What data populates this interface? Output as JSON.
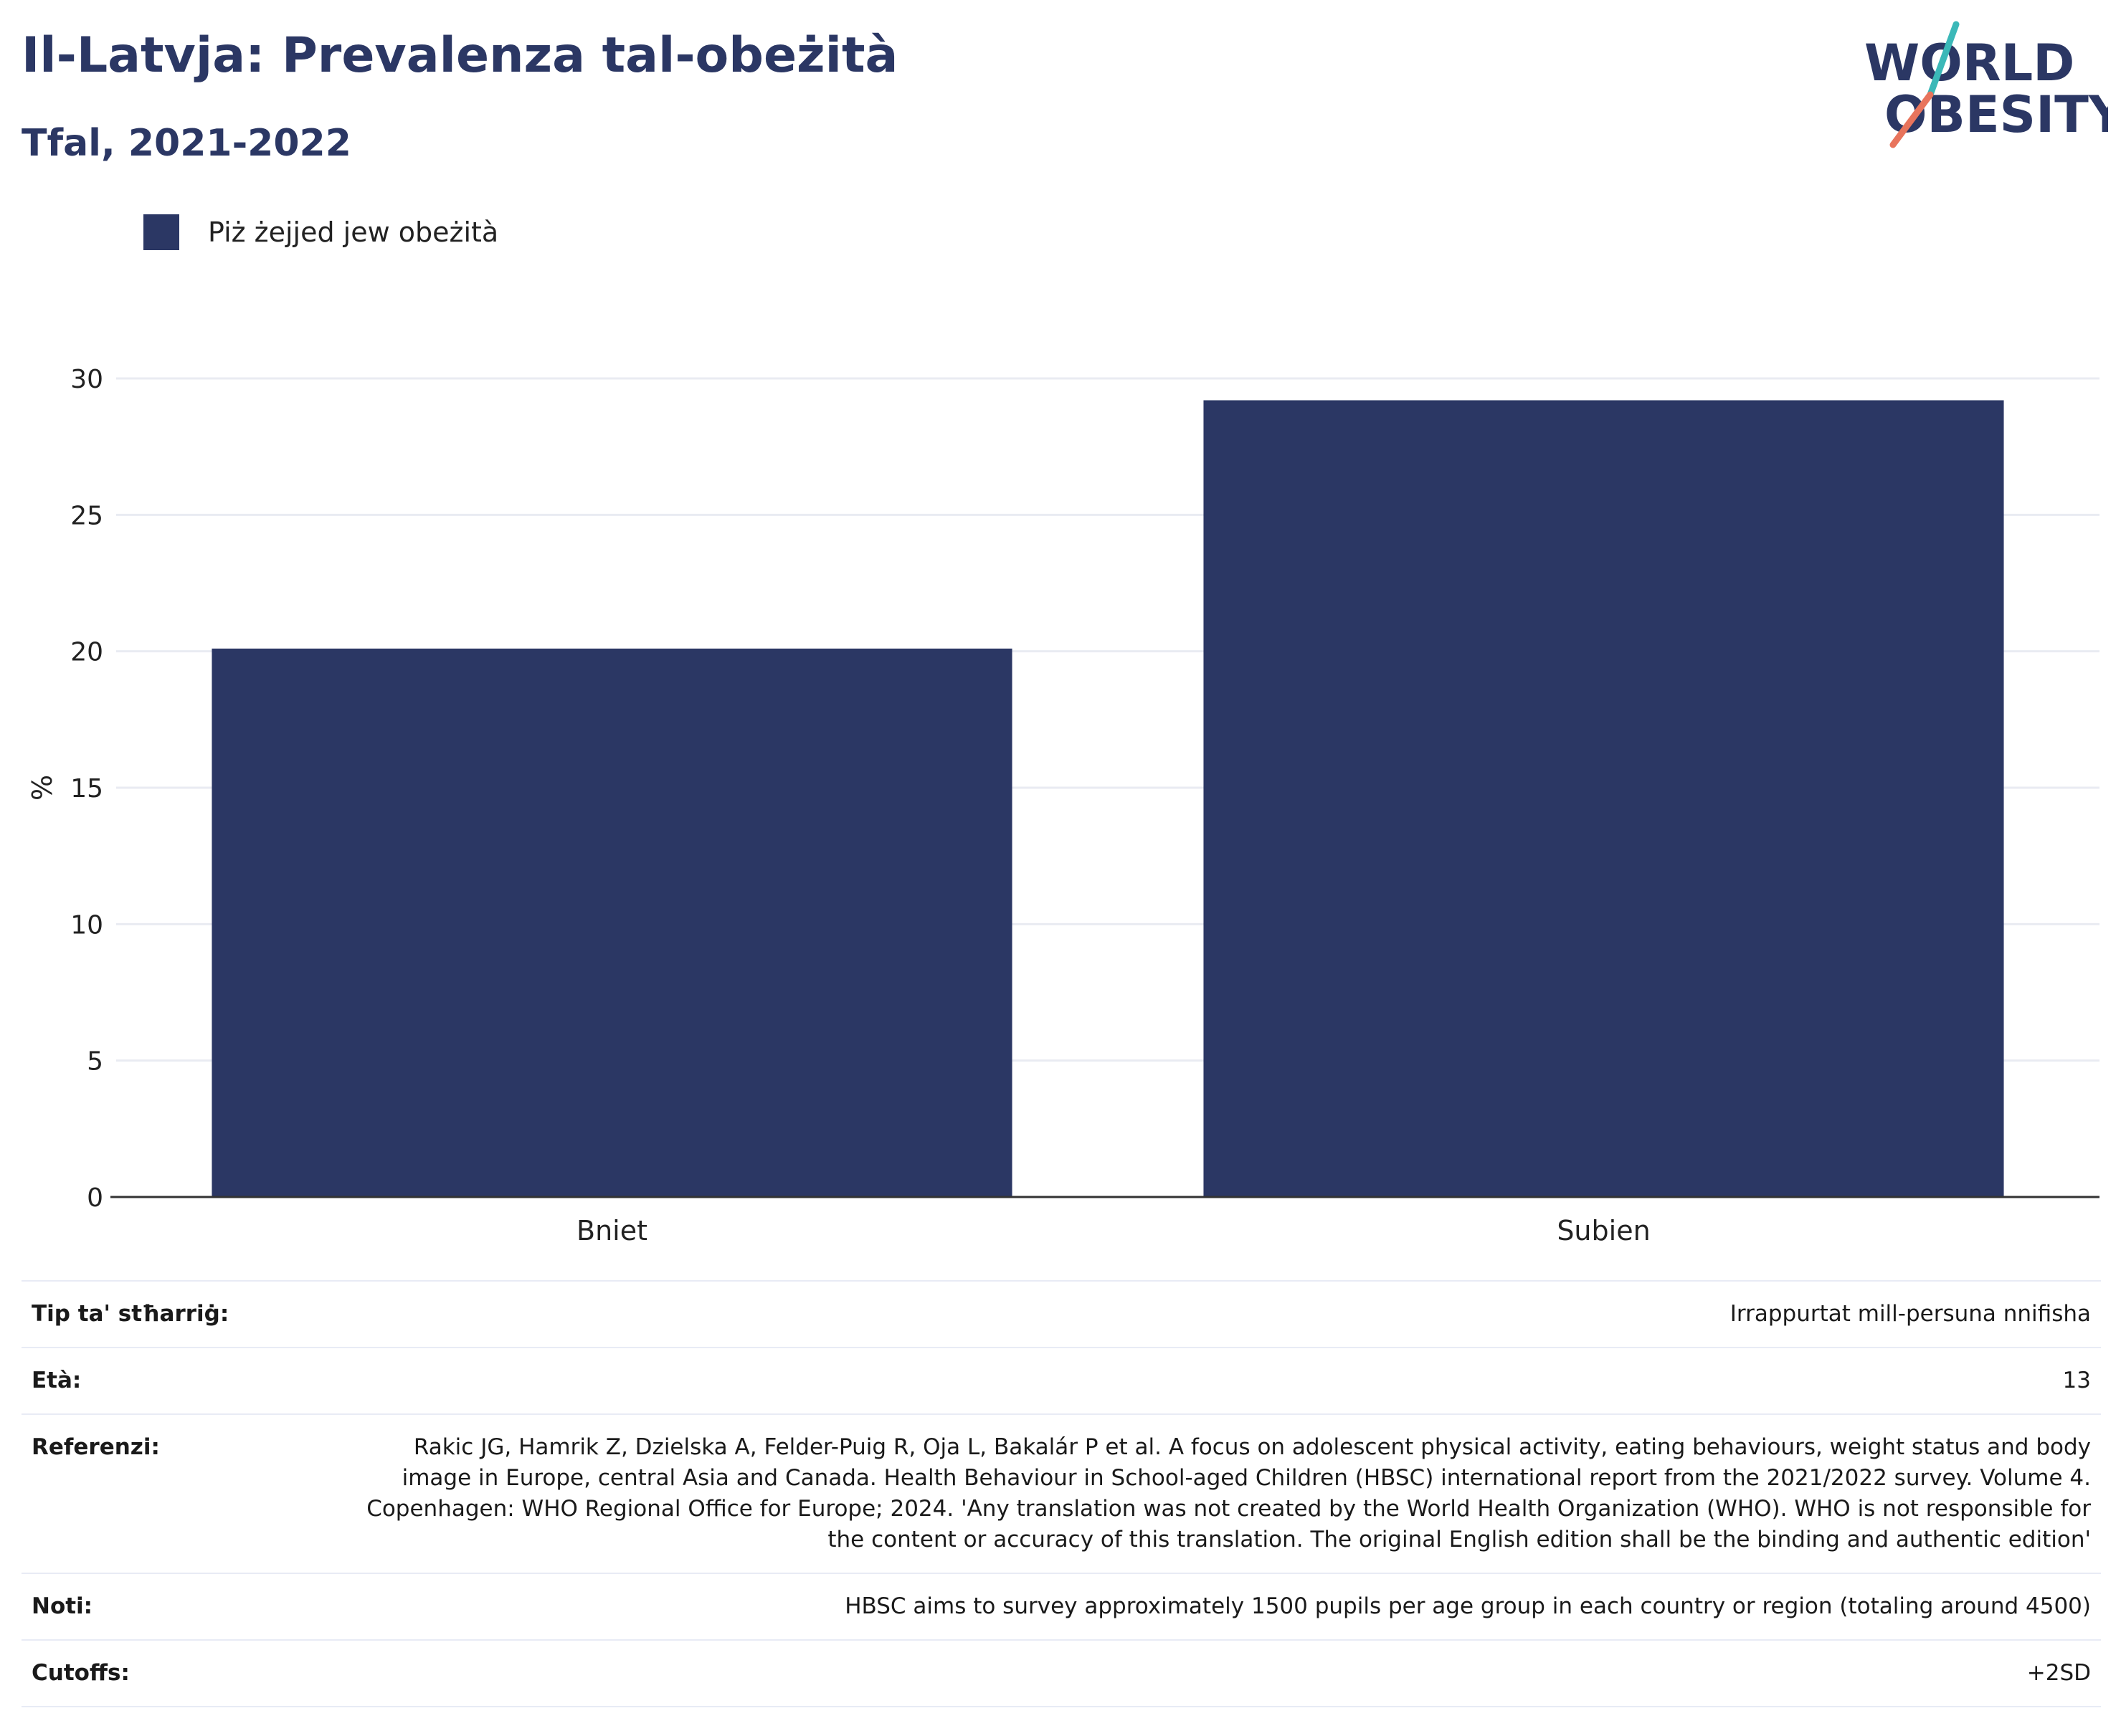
{
  "title": "Il-Latvja: Prevalenza tal-obeżità",
  "subtitle": "Tfal, 2021-2022",
  "logo": {
    "line1": "WORLD",
    "line2": "OBESITY",
    "colors": {
      "text": "#2b3764",
      "slash_teal": "#3bb8b8",
      "slash_coral": "#e8745c"
    }
  },
  "legend": {
    "label": "Piż żejjed jew obeżità",
    "color": "#2b3764"
  },
  "chart_data": {
    "type": "bar",
    "categories": [
      "Bniet",
      "Subien"
    ],
    "series": [
      {
        "name": "Piż żejjed jew obeżità",
        "values": [
          20.1,
          29.2
        ],
        "color": "#2b3764"
      }
    ],
    "ylabel": "%",
    "xlabel": "",
    "ylim": [
      0,
      30
    ],
    "yticks": [
      0,
      5,
      10,
      15,
      20,
      25,
      30
    ],
    "grid": true,
    "legend_position": "top-left"
  },
  "meta": [
    {
      "key": "Tip ta' stħarriġ:",
      "value": "Irrappurtat mill-persuna nnifisha"
    },
    {
      "key": "Età:",
      "value": "13"
    },
    {
      "key": "Referenzi:",
      "value": "Rakic JG, Hamrik Z, Dzielska A, Felder-Puig R, Oja L, Bakalár P et al. A focus on adolescent physical activity, eating behaviours, weight status and body image in Europe, central Asia and Canada. Health Behaviour in School-aged Children (HBSC) international report from the 2021/2022 survey. Volume 4. Copenhagen: WHO Regional Office for Europe; 2024. 'Any translation was not created by the World Health Organization (WHO). WHO is not responsible for the content or accuracy of this translation. The original English edition shall be the binding and authentic edition'"
    },
    {
      "key": "Noti:",
      "value": "HBSC aims to survey approximately 1500 pupils per age group in each country or region (totaling around 4500)"
    },
    {
      "key": "Cutoffs:",
      "value": "+2SD"
    }
  ]
}
